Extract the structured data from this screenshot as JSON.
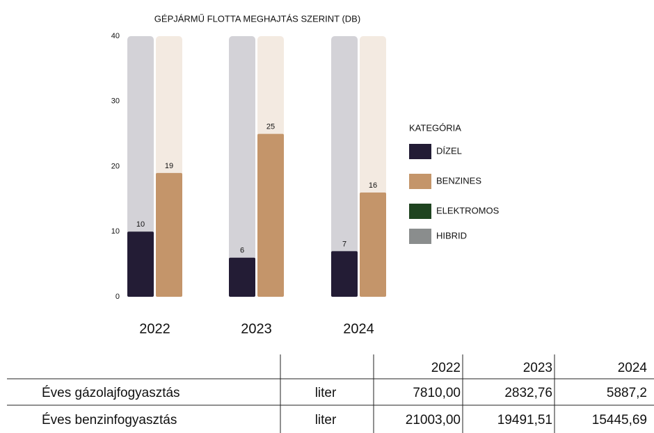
{
  "chart_data": {
    "type": "bar",
    "title": "GÉPJÁRMŰ FLOTTA MEGHAJTÁS SZERINT (DB)",
    "categories": [
      "2022",
      "2023",
      "2024"
    ],
    "series": [
      {
        "name": "DÍZEL",
        "color": "#231c35",
        "values": [
          10,
          6,
          7
        ]
      },
      {
        "name": "BENZINES",
        "color": "#c4956a",
        "values": [
          19,
          25,
          16
        ]
      },
      {
        "name": "ELEKTROMOS",
        "color": "#1f4420",
        "values": [
          null,
          null,
          null
        ]
      },
      {
        "name": "HIBRID",
        "color": "#8a8d8d",
        "values": [
          null,
          null,
          null
        ]
      }
    ],
    "legend_title": "KATEGÓRIA",
    "ylim": [
      0,
      40
    ],
    "yticks": [
      0,
      10,
      20,
      30,
      40
    ],
    "grid": false,
    "legend": "right"
  },
  "table": {
    "columns": [
      "2022",
      "2023",
      "2024"
    ],
    "rows": [
      [
        "Éves gázolajfogyasztás",
        "liter",
        "7810,00",
        "2832,76",
        "5887,2"
      ],
      [
        "Éves benzinfogyasztás",
        "liter",
        "21003,00",
        "19491,51",
        "15445,69"
      ]
    ]
  }
}
